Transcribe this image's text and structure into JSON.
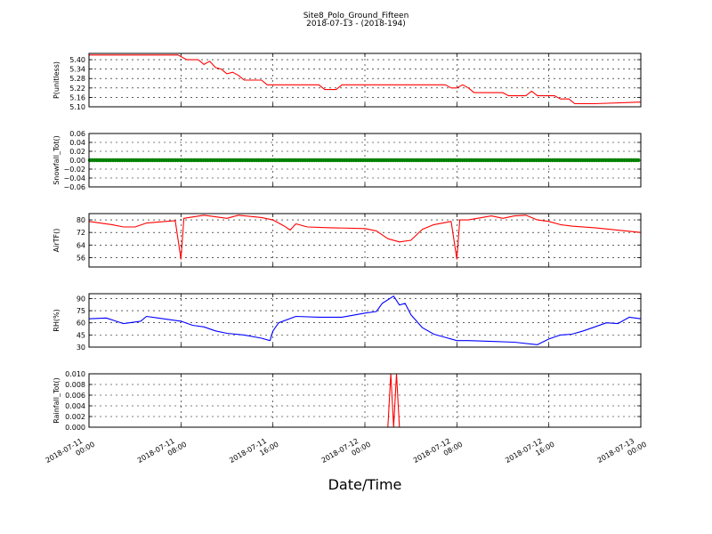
{
  "chart_data": {
    "type": "line",
    "title": "Site8_Polo_Ground_Fifteen",
    "subtitle": "2018-07-13 - (2018-194)",
    "xlabel": "Date/Time",
    "x_ticks": [
      {
        "x": "2018-07-11 00:00",
        "label": [
          "2018-07-11",
          "00:00"
        ]
      },
      {
        "x": "2018-07-11 08:00",
        "label": [
          "2018-07-11",
          "08:00"
        ]
      },
      {
        "x": "2018-07-11 16:00",
        "label": [
          "2018-07-11",
          "16:00"
        ]
      },
      {
        "x": "2018-07-12 00:00",
        "label": [
          "2018-07-12",
          "00:00"
        ]
      },
      {
        "x": "2018-07-12 08:00",
        "label": [
          "2018-07-12",
          "08:00"
        ]
      },
      {
        "x": "2018-07-12 16:00",
        "label": [
          "2018-07-12",
          "16:00"
        ]
      },
      {
        "x": "2018-07-13 00:00",
        "label": [
          "2018-07-13",
          "00:00"
        ]
      }
    ],
    "xlim": [
      "2018-07-11 00:00",
      "2018-07-13 00:00"
    ],
    "grid": true,
    "panels": [
      {
        "ylabel": "P(unitless)",
        "color": "#ff0000",
        "ylim": [
          5.1,
          5.44
        ],
        "yticks": [
          "5.40",
          "5.34",
          "5.28",
          "5.22",
          "5.16",
          "5.10"
        ],
        "yticks_val": [
          5.4,
          5.34,
          5.28,
          5.22,
          5.16,
          5.1
        ],
        "points": [
          [
            "2018-07-11 00:00",
            5.43
          ],
          [
            "2018-07-11 04:00",
            5.43
          ],
          [
            "2018-07-11 07:45",
            5.43
          ],
          [
            "2018-07-11 08:30",
            5.4
          ],
          [
            "2018-07-11 09:30",
            5.4
          ],
          [
            "2018-07-11 10:00",
            5.37
          ],
          [
            "2018-07-11 10:30",
            5.39
          ],
          [
            "2018-07-11 11:00",
            5.35
          ],
          [
            "2018-07-11 11:30",
            5.34
          ],
          [
            "2018-07-11 12:00",
            5.31
          ],
          [
            "2018-07-11 12:30",
            5.32
          ],
          [
            "2018-07-11 13:00",
            5.3
          ],
          [
            "2018-07-11 13:30",
            5.27
          ],
          [
            "2018-07-11 15:00",
            5.27
          ],
          [
            "2018-07-11 15:30",
            5.24
          ],
          [
            "2018-07-11 20:00",
            5.24
          ],
          [
            "2018-07-11 20:30",
            5.21
          ],
          [
            "2018-07-11 21:30",
            5.21
          ],
          [
            "2018-07-11 22:00",
            5.24
          ],
          [
            "2018-07-12 07:00",
            5.24
          ],
          [
            "2018-07-12 07:30",
            5.22
          ],
          [
            "2018-07-12 08:00",
            5.22
          ],
          [
            "2018-07-12 08:30",
            5.24
          ],
          [
            "2018-07-12 09:00",
            5.22
          ],
          [
            "2018-07-12 09:30",
            5.19
          ],
          [
            "2018-07-12 12:00",
            5.19
          ],
          [
            "2018-07-12 12:30",
            5.17
          ],
          [
            "2018-07-12 14:00",
            5.17
          ],
          [
            "2018-07-12 14:30",
            5.2
          ],
          [
            "2018-07-12 15:00",
            5.17
          ],
          [
            "2018-07-12 16:30",
            5.17
          ],
          [
            "2018-07-12 17:00",
            5.15
          ],
          [
            "2018-07-12 17:45",
            5.15
          ],
          [
            "2018-07-12 18:15",
            5.12
          ],
          [
            "2018-07-12 20:00",
            5.12
          ],
          [
            "2018-07-13 00:00",
            5.13
          ]
        ]
      },
      {
        "ylabel": "Snowfall_Tot()",
        "color": "#008000",
        "marker": true,
        "ylim": [
          -0.06,
          0.06
        ],
        "yticks": [
          "0.06",
          "0.04",
          "0.02",
          "0.00",
          "−0.02",
          "−0.04",
          "−0.06"
        ],
        "yticks_val": [
          0.06,
          0.04,
          0.02,
          0.0,
          -0.02,
          -0.04,
          -0.06
        ],
        "points": [
          [
            "2018-07-11 00:00",
            0.0
          ],
          [
            "2018-07-13 00:00",
            0.0
          ]
        ]
      },
      {
        "ylabel": "AirTF()",
        "color": "#ff0000",
        "ylim": [
          50,
          84
        ],
        "yticks": [
          "80",
          "72",
          "64",
          "56"
        ],
        "yticks_val": [
          80,
          72,
          64,
          56
        ],
        "points": [
          [
            "2018-07-11 00:00",
            79
          ],
          [
            "2018-07-11 02:00",
            77
          ],
          [
            "2018-07-11 03:00",
            75.5
          ],
          [
            "2018-07-11 04:00",
            75.5
          ],
          [
            "2018-07-11 05:00",
            78
          ],
          [
            "2018-07-11 07:30",
            79.5
          ],
          [
            "2018-07-11 08:00",
            55
          ],
          [
            "2018-07-11 08:15",
            81
          ],
          [
            "2018-07-11 10:00",
            83
          ],
          [
            "2018-07-11 12:00",
            81
          ],
          [
            "2018-07-11 13:00",
            83
          ],
          [
            "2018-07-11 15:00",
            81.5
          ],
          [
            "2018-07-11 16:00",
            80
          ],
          [
            "2018-07-11 17:00",
            76
          ],
          [
            "2018-07-11 17:30",
            73.5
          ],
          [
            "2018-07-11 18:00",
            77.5
          ],
          [
            "2018-07-11 19:00",
            75.5
          ],
          [
            "2018-07-11 21:00",
            75
          ],
          [
            "2018-07-12 00:00",
            74.5
          ],
          [
            "2018-07-12 01:00",
            73
          ],
          [
            "2018-07-12 02:00",
            68
          ],
          [
            "2018-07-12 03:00",
            66
          ],
          [
            "2018-07-12 04:00",
            67
          ],
          [
            "2018-07-12 05:00",
            74
          ],
          [
            "2018-07-12 06:00",
            77
          ],
          [
            "2018-07-12 07:30",
            79
          ],
          [
            "2018-07-12 08:00",
            55
          ],
          [
            "2018-07-12 08:15",
            80
          ],
          [
            "2018-07-12 09:00",
            80
          ],
          [
            "2018-07-12 11:00",
            82.5
          ],
          [
            "2018-07-12 12:00",
            81
          ],
          [
            "2018-07-12 13:00",
            82.5
          ],
          [
            "2018-07-12 14:00",
            83
          ],
          [
            "2018-07-12 15:00",
            80
          ],
          [
            "2018-07-12 16:00",
            79
          ],
          [
            "2018-07-12 17:00",
            77
          ],
          [
            "2018-07-12 18:00",
            76
          ],
          [
            "2018-07-12 20:00",
            75
          ],
          [
            "2018-07-13 00:00",
            72
          ]
        ]
      },
      {
        "ylabel": "RH(%)",
        "color": "#0000ff",
        "ylim": [
          30,
          96
        ],
        "yticks": [
          "90",
          "75",
          "60",
          "45",
          "30"
        ],
        "yticks_val": [
          90,
          75,
          60,
          45,
          30
        ],
        "points": [
          [
            "2018-07-11 00:00",
            65
          ],
          [
            "2018-07-11 01:30",
            66
          ],
          [
            "2018-07-11 03:00",
            59
          ],
          [
            "2018-07-11 04:30",
            62
          ],
          [
            "2018-07-11 05:00",
            68
          ],
          [
            "2018-07-11 06:00",
            66
          ],
          [
            "2018-07-11 08:00",
            62
          ],
          [
            "2018-07-11 09:00",
            57
          ],
          [
            "2018-07-11 10:00",
            55
          ],
          [
            "2018-07-11 11:00",
            50
          ],
          [
            "2018-07-11 12:00",
            47
          ],
          [
            "2018-07-11 13:30",
            45
          ],
          [
            "2018-07-11 15:00",
            41
          ],
          [
            "2018-07-11 15:45",
            38
          ],
          [
            "2018-07-11 16:00",
            50
          ],
          [
            "2018-07-11 16:30",
            60
          ],
          [
            "2018-07-11 18:00",
            68
          ],
          [
            "2018-07-11 20:00",
            67
          ],
          [
            "2018-07-11 22:00",
            67
          ],
          [
            "2018-07-12 00:00",
            72
          ],
          [
            "2018-07-12 01:00",
            74
          ],
          [
            "2018-07-12 01:30",
            84
          ],
          [
            "2018-07-12 02:30",
            93
          ],
          [
            "2018-07-12 03:00",
            82
          ],
          [
            "2018-07-12 03:30",
            84
          ],
          [
            "2018-07-12 04:00",
            70
          ],
          [
            "2018-07-12 05:00",
            54
          ],
          [
            "2018-07-12 06:00",
            46
          ],
          [
            "2018-07-12 07:00",
            42
          ],
          [
            "2018-07-12 08:00",
            38
          ],
          [
            "2018-07-12 09:00",
            38
          ],
          [
            "2018-07-12 11:00",
            37
          ],
          [
            "2018-07-12 13:00",
            36
          ],
          [
            "2018-07-12 15:00",
            33
          ],
          [
            "2018-07-12 16:00",
            40
          ],
          [
            "2018-07-12 17:00",
            45
          ],
          [
            "2018-07-12 18:00",
            46
          ],
          [
            "2018-07-12 19:00",
            50
          ],
          [
            "2018-07-12 20:00",
            55
          ],
          [
            "2018-07-12 21:00",
            60
          ],
          [
            "2018-07-12 22:00",
            59
          ],
          [
            "2018-07-12 23:00",
            67
          ],
          [
            "2018-07-13 00:00",
            65
          ]
        ]
      },
      {
        "ylabel": "Rainfall_Tot()",
        "color": "#ff0000",
        "ylim": [
          0,
          0.01
        ],
        "yticks": [
          "0.010",
          "0.008",
          "0.006",
          "0.004",
          "0.002",
          "0.000"
        ],
        "yticks_val": [
          0.01,
          0.008,
          0.006,
          0.004,
          0.002,
          0.0
        ],
        "points": [
          [
            "2018-07-11 00:00",
            0
          ],
          [
            "2018-07-12 02:00",
            0
          ],
          [
            "2018-07-12 02:15",
            0.01
          ],
          [
            "2018-07-12 02:30",
            0
          ],
          [
            "2018-07-12 02:45",
            0.01
          ],
          [
            "2018-07-12 03:00",
            0
          ],
          [
            "2018-07-13 00:00",
            0
          ]
        ]
      }
    ]
  }
}
